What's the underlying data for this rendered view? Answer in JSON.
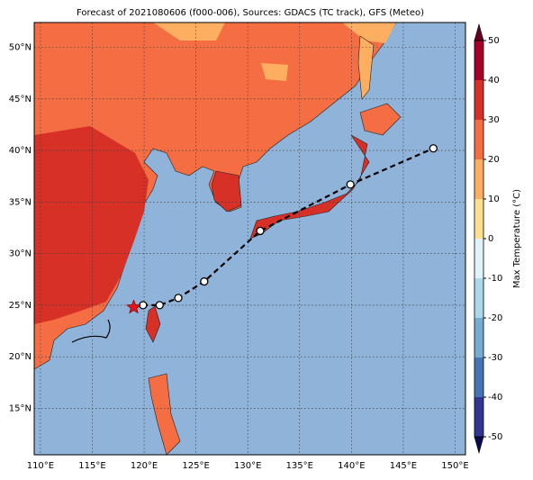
{
  "map": {
    "title": "Forecast of 2021080606 (f000-006), Sources: GDACS (TC track), GFS (Meteo)",
    "xlim": [
      109.4,
      151.0
    ],
    "ylim": [
      10.5,
      52.4
    ],
    "xticks": [
      {
        "value": 110,
        "label": "110°E"
      },
      {
        "value": 115,
        "label": "115°E"
      },
      {
        "value": 120,
        "label": "120°E"
      },
      {
        "value": 125,
        "label": "125°E"
      },
      {
        "value": 130,
        "label": "130°E"
      },
      {
        "value": 135,
        "label": "135°E"
      },
      {
        "value": 140,
        "label": "140°E"
      },
      {
        "value": 145,
        "label": "145°E"
      },
      {
        "value": 150,
        "label": "150°E"
      }
    ],
    "yticks": [
      {
        "value": 15,
        "label": "15°N"
      },
      {
        "value": 20,
        "label": "20°N"
      },
      {
        "value": 25,
        "label": "25°N"
      },
      {
        "value": 30,
        "label": "30°N"
      },
      {
        "value": 35,
        "label": "35°N"
      },
      {
        "value": 40,
        "label": "40°N"
      },
      {
        "value": 45,
        "label": "45°N"
      },
      {
        "value": 50,
        "label": "50°N"
      }
    ],
    "track": {
      "lon": [
        119.9,
        121.5,
        123.3,
        125.8,
        131.2,
        139.9,
        147.9
      ],
      "lat": [
        25.0,
        25.0,
        25.7,
        27.3,
        32.2,
        36.7,
        40.2
      ]
    },
    "current": {
      "lon": 119.0,
      "lat": 24.8
    }
  },
  "colorbar": {
    "label": "Max Temperature (°C)",
    "lim": [
      -50,
      50
    ],
    "ticks": [
      -50,
      -40,
      -30,
      -20,
      -10,
      0,
      10,
      20,
      30,
      40,
      50
    ],
    "colors": [
      "#313695",
      "#4575b4",
      "#74add1",
      "#abd9e9",
      "#e0f3f8",
      "#fee090",
      "#fdae61",
      "#f46d43",
      "#d73027",
      "#a50026"
    ]
  }
}
